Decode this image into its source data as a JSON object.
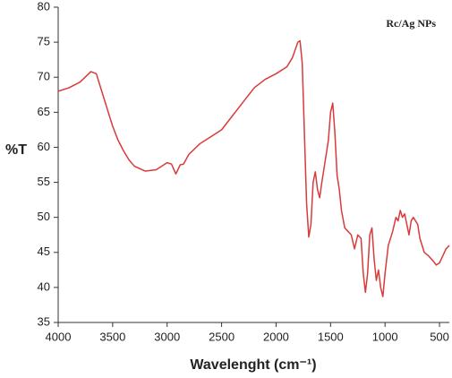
{
  "chart_data": {
    "type": "line",
    "annotation": "Rc/Ag NPs",
    "y_label": "%T",
    "x_label": "Wavelenght (cm⁻¹)",
    "x": [
      4000,
      3900,
      3800,
      3700,
      3650,
      3600,
      3550,
      3500,
      3450,
      3400,
      3350,
      3300,
      3200,
      3100,
      3000,
      2960,
      2920,
      2880,
      2850,
      2800,
      2700,
      2600,
      2500,
      2400,
      2300,
      2200,
      2100,
      2000,
      1900,
      1850,
      1800,
      1780,
      1760,
      1740,
      1720,
      1700,
      1680,
      1660,
      1640,
      1620,
      1600,
      1580,
      1550,
      1520,
      1500,
      1480,
      1460,
      1440,
      1420,
      1400,
      1370,
      1340,
      1310,
      1280,
      1250,
      1220,
      1200,
      1180,
      1160,
      1140,
      1120,
      1100,
      1080,
      1060,
      1040,
      1020,
      1000,
      970,
      930,
      900,
      880,
      860,
      840,
      820,
      800,
      780,
      760,
      740,
      700,
      680,
      640,
      600,
      560,
      530,
      500,
      470,
      440,
      410
    ],
    "values": [
      68,
      68.5,
      69.3,
      70.8,
      70.5,
      68,
      65.5,
      63,
      61,
      59.5,
      58.2,
      57.3,
      56.6,
      56.8,
      57.8,
      57.6,
      56.2,
      57.5,
      57.6,
      59,
      60.5,
      61.5,
      62.5,
      64.5,
      66.5,
      68.5,
      69.7,
      70.5,
      71.5,
      72.8,
      75,
      75.2,
      72,
      62,
      52,
      47.2,
      49,
      55,
      56.5,
      54,
      52.8,
      55,
      58,
      61,
      65,
      66.3,
      62,
      56,
      54,
      51,
      48.5,
      48,
      47.5,
      45.5,
      47.5,
      47,
      42,
      39.3,
      42,
      47.5,
      48.5,
      44,
      41,
      42.5,
      40,
      38.7,
      42,
      46,
      48,
      50,
      49.5,
      51,
      50,
      50.5,
      49,
      47.5,
      49.5,
      50,
      49,
      47,
      45,
      44.5,
      43.8,
      43.2,
      43.5,
      44.5,
      45.5,
      46
    ],
    "color": "#d93a3a",
    "xlim": [
      4000,
      410
    ],
    "xticks": [
      4000,
      3500,
      3000,
      2500,
      2000,
      1500,
      1000,
      500
    ],
    "ylim": [
      35,
      80
    ],
    "yticks": [
      35,
      40,
      45,
      50,
      55,
      60,
      65,
      70,
      75,
      80
    ]
  }
}
